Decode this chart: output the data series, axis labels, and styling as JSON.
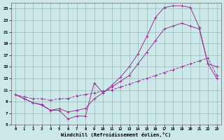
{
  "bg_color": "#cce8e8",
  "grid_color": "#99bbbb",
  "line_color": "#993399",
  "xlim_min": 0,
  "xlim_max": 23,
  "ylim_min": 5,
  "ylim_max": 26,
  "xticks": [
    0,
    1,
    2,
    3,
    4,
    5,
    6,
    7,
    8,
    9,
    10,
    11,
    12,
    13,
    14,
    15,
    16,
    17,
    18,
    19,
    20,
    21,
    22,
    23
  ],
  "yticks": [
    5,
    7,
    9,
    11,
    13,
    15,
    17,
    19,
    21,
    23,
    25
  ],
  "xlabel": "Windchill (Refroidissement éolien,°C)",
  "line1_x": [
    0,
    1,
    2,
    3,
    4,
    5,
    6,
    7,
    8,
    9,
    10,
    11,
    12,
    13,
    14,
    15,
    16,
    17,
    18,
    19,
    20,
    21,
    22,
    23
  ],
  "line1_y": [
    10.2,
    9.5,
    8.8,
    8.4,
    7.5,
    7.5,
    6.0,
    6.5,
    6.5,
    12.2,
    10.5,
    11.8,
    13.2,
    15.0,
    17.2,
    20.2,
    23.5,
    25.2,
    25.5,
    25.5,
    25.2,
    21.8,
    15.5,
    15.0
  ],
  "line2_x": [
    0,
    1,
    2,
    3,
    4,
    5,
    6,
    7,
    8,
    9,
    10,
    11,
    12,
    13,
    14,
    15,
    16,
    17,
    18,
    19,
    20,
    21,
    22,
    23
  ],
  "line2_y": [
    10.2,
    9.5,
    8.8,
    8.5,
    7.5,
    7.8,
    7.2,
    7.5,
    7.8,
    9.5,
    10.5,
    11.5,
    12.5,
    13.5,
    15.5,
    17.5,
    19.5,
    21.5,
    22.0,
    22.5,
    22.0,
    21.5,
    15.5,
    13.0
  ],
  "line3_x": [
    0,
    1,
    2,
    3,
    4,
    5,
    6,
    7,
    8,
    9,
    10,
    11,
    12,
    13,
    14,
    15,
    16,
    17,
    18,
    19,
    20,
    21,
    22,
    23
  ],
  "line3_y": [
    10.2,
    9.8,
    9.5,
    9.5,
    9.2,
    9.5,
    9.5,
    10.0,
    10.2,
    10.5,
    10.8,
    11.0,
    11.5,
    12.0,
    12.5,
    13.0,
    13.5,
    14.0,
    14.5,
    15.0,
    15.5,
    16.0,
    16.5,
    13.5
  ]
}
